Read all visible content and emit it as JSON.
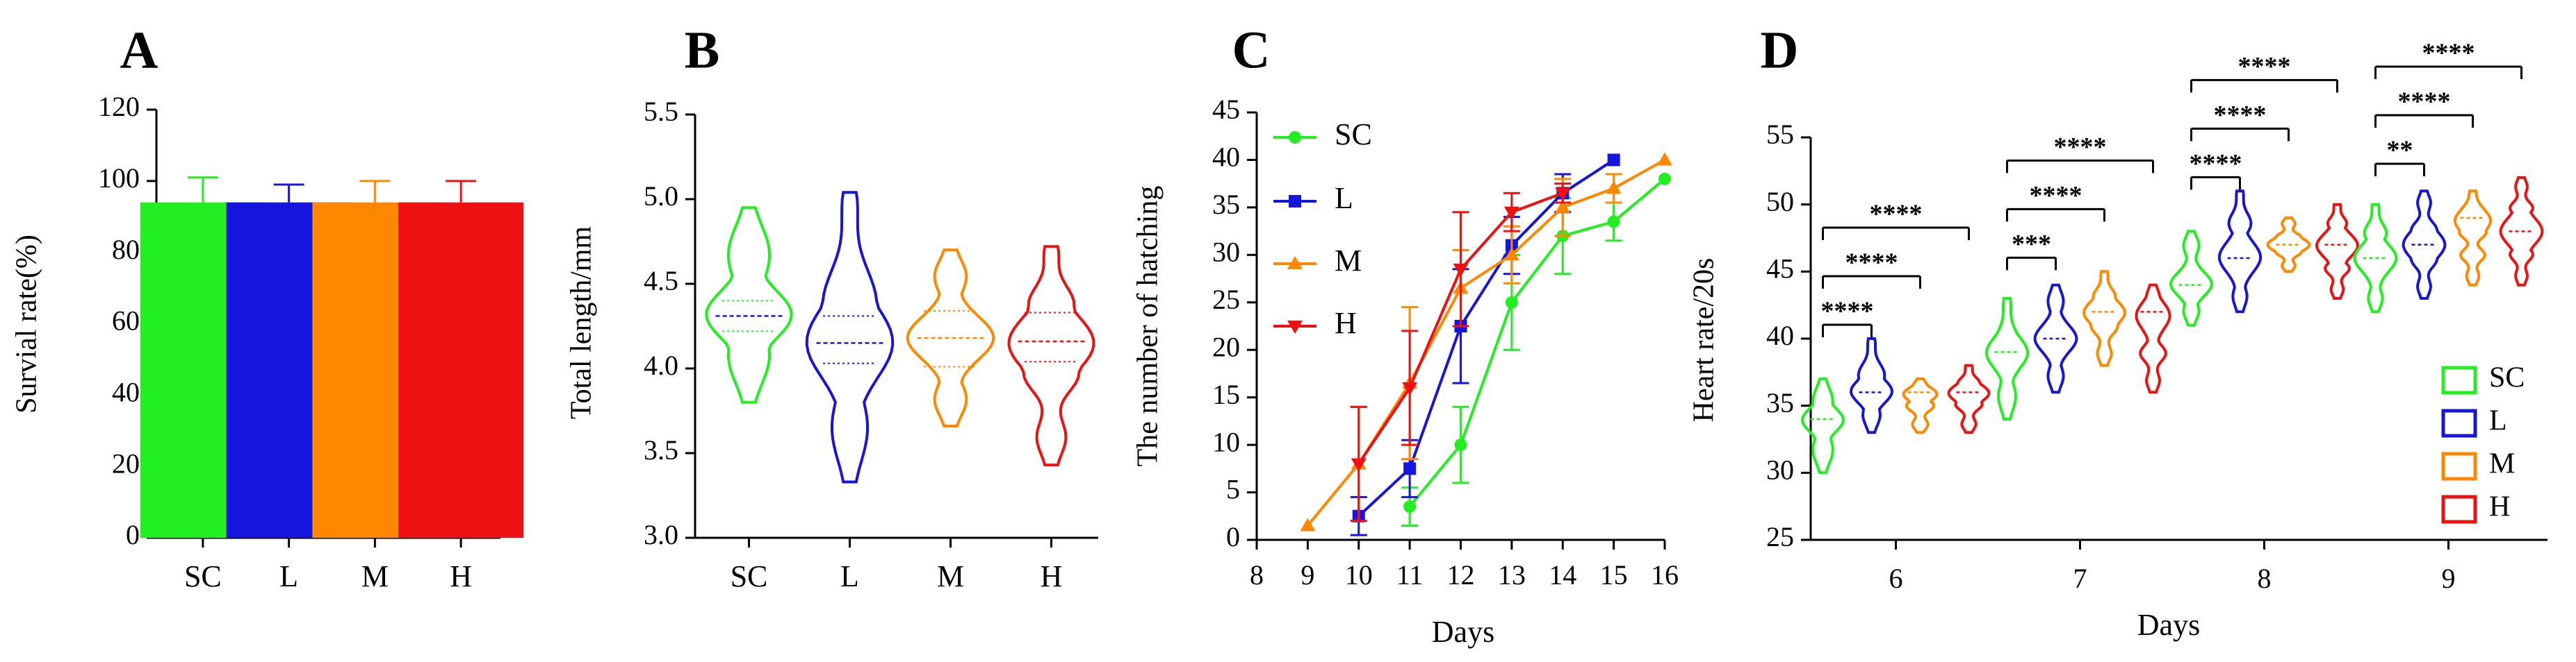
{
  "palette": {
    "SC": "#22ee22",
    "L": "#1515dd",
    "M": "#ff8800",
    "H": "#ee1111",
    "axis": "#000000"
  },
  "chart_data": [
    {
      "panel": "A",
      "type": "bar",
      "title": "A",
      "ylabel": "Survial rate(%)",
      "xlabel": "",
      "categories": [
        "SC",
        "L",
        "M",
        "H"
      ],
      "values": [
        94,
        94,
        94,
        94
      ],
      "errors": [
        7,
        5,
        6,
        6
      ],
      "ylim": [
        0,
        120
      ],
      "yticks": [
        "0",
        "20",
        "40",
        "60",
        "80",
        "100",
        "120"
      ]
    },
    {
      "panel": "B",
      "type": "violin",
      "title": "B",
      "ylabel": "Total length/mm",
      "xlabel": "",
      "categories": [
        "SC",
        "L",
        "M",
        "H"
      ],
      "medians": [
        4.31,
        4.15,
        4.18,
        4.16
      ],
      "quartiles": [
        [
          4.22,
          4.4
        ],
        [
          4.03,
          4.31
        ],
        [
          4.01,
          4.34
        ],
        [
          4.04,
          4.33
        ]
      ],
      "ranges": [
        [
          3.8,
          4.95
        ],
        [
          3.33,
          5.04
        ],
        [
          3.66,
          4.7
        ],
        [
          3.43,
          4.72
        ]
      ],
      "ylim": [
        3.0,
        5.5
      ],
      "yticks": [
        "3.0",
        "3.5",
        "4.0",
        "4.5",
        "5.0",
        "5.5"
      ]
    },
    {
      "panel": "C",
      "type": "line",
      "title": "C",
      "ylabel": "The number of hatching",
      "xlabel": "Days",
      "xticks": [
        "8",
        "9",
        "10",
        "11",
        "12",
        "13",
        "14",
        "15",
        "16"
      ],
      "yticks": [
        "0",
        "5",
        "10",
        "15",
        "20",
        "25",
        "30",
        "35",
        "40",
        "45"
      ],
      "xlim": [
        8,
        16
      ],
      "ylim": [
        0,
        45
      ],
      "legend": [
        "SC",
        "L",
        "M",
        "H"
      ],
      "series": [
        {
          "name": "SC",
          "x": [
            11,
            12,
            13,
            14,
            15,
            16
          ],
          "y": [
            3.5,
            10,
            25,
            32,
            33.5,
            38
          ],
          "err": [
            2,
            4,
            5,
            4,
            2,
            0
          ]
        },
        {
          "name": "L",
          "x": [
            10,
            11,
            12,
            13,
            14,
            15
          ],
          "y": [
            2.5,
            7.5,
            22.5,
            31,
            36.5,
            40
          ],
          "err": [
            2,
            3,
            6,
            3,
            2,
            0
          ]
        },
        {
          "name": "M",
          "x": [
            9,
            10,
            11,
            12,
            13,
            14,
            15,
            16
          ],
          "y": [
            1.5,
            8,
            16.5,
            26.5,
            30,
            35,
            37,
            40
          ],
          "err": [
            0,
            6,
            8,
            4,
            3,
            3,
            1.5,
            0
          ]
        },
        {
          "name": "H",
          "x": [
            10,
            11,
            12,
            13,
            14
          ],
          "y": [
            8,
            16,
            28.5,
            34.5,
            36.5
          ],
          "err": [
            6,
            6,
            6,
            2,
            1
          ]
        }
      ]
    },
    {
      "panel": "D",
      "type": "violin",
      "title": "D",
      "ylabel": "Heart rate/20s",
      "xlabel": "Days",
      "xticks": [
        "6",
        "7",
        "8",
        "9"
      ],
      "yticks": [
        "25",
        "30",
        "35",
        "40",
        "45",
        "50",
        "55"
      ],
      "ylim": [
        25,
        55
      ],
      "legend": [
        "SC",
        "L",
        "M",
        "H"
      ],
      "medians": [
        [
          34,
          36,
          36,
          36
        ],
        [
          39,
          40,
          42,
          42
        ],
        [
          44,
          46,
          47,
          47
        ],
        [
          46,
          47,
          49,
          48
        ]
      ],
      "ranges": [
        [
          [
            30,
            37
          ],
          [
            33,
            40
          ],
          [
            33,
            37
          ],
          [
            33,
            38
          ]
        ],
        [
          [
            34,
            43
          ],
          [
            36,
            44
          ],
          [
            38,
            45
          ],
          [
            36,
            44
          ]
        ],
        [
          [
            41,
            48
          ],
          [
            42,
            51
          ],
          [
            45,
            49
          ],
          [
            43,
            50
          ]
        ],
        [
          [
            42,
            50
          ],
          [
            43,
            51
          ],
          [
            44,
            51
          ],
          [
            44,
            52
          ]
        ]
      ],
      "significance": [
        {
          "day": "6",
          "pairs": [
            [
              "SC",
              "L",
              "****"
            ],
            [
              "SC",
              "M",
              "****"
            ],
            [
              "SC",
              "H",
              "****"
            ]
          ]
        },
        {
          "day": "7",
          "pairs": [
            [
              "SC",
              "L",
              "***"
            ],
            [
              "SC",
              "M",
              "****"
            ],
            [
              "SC",
              "H",
              "****"
            ]
          ]
        },
        {
          "day": "8",
          "pairs": [
            [
              "SC",
              "L",
              "****"
            ],
            [
              "SC",
              "M",
              "****"
            ],
            [
              "SC",
              "H",
              "****"
            ]
          ]
        },
        {
          "day": "9",
          "pairs": [
            [
              "SC",
              "L",
              "**"
            ],
            [
              "SC",
              "M",
              "****"
            ],
            [
              "SC",
              "H",
              "****"
            ]
          ]
        }
      ]
    }
  ]
}
